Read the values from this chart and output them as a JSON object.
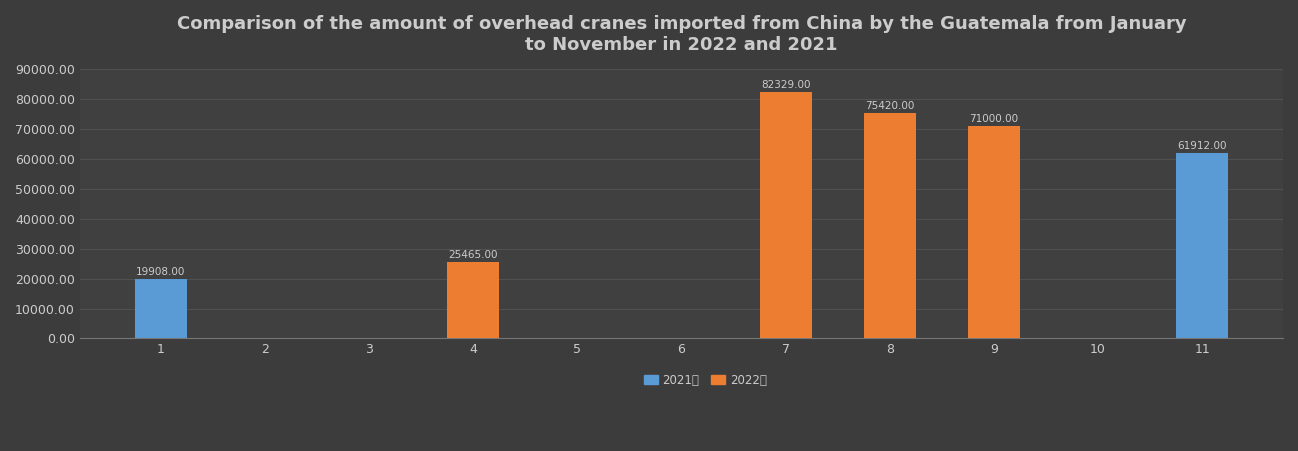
{
  "title": "Comparison of the amount of overhead cranes imported from China by the Guatemala from January\nto November in 2022 and 2021",
  "months": [
    1,
    2,
    3,
    4,
    5,
    6,
    7,
    8,
    9,
    10,
    11
  ],
  "data_2021": [
    19908,
    0,
    0,
    0,
    0,
    0,
    0,
    0,
    0,
    0,
    61912
  ],
  "data_2022": [
    0,
    0,
    0,
    25465,
    0,
    0,
    82329,
    75420,
    71000,
    0,
    0
  ],
  "color_2021": "#5B9BD5",
  "color_2022": "#ED7D31",
  "background_color": "#3C3C3C",
  "axes_background": "#404040",
  "grid_color": "#555555",
  "text_color": "#CCCCCC",
  "label_2021": "2021年",
  "label_2022": "2022年",
  "ylim": [
    0,
    90000
  ],
  "yticks": [
    0,
    10000,
    20000,
    30000,
    40000,
    50000,
    60000,
    70000,
    80000,
    90000
  ],
  "bar_width": 0.5,
  "title_fontsize": 13,
  "tick_fontsize": 9,
  "annotation_fontsize": 7.5
}
